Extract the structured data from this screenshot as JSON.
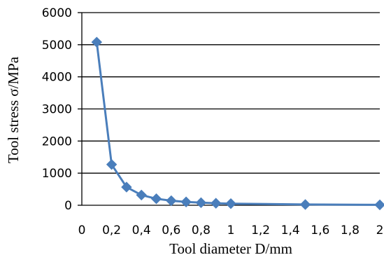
{
  "chart_data": {
    "type": "line",
    "title": "",
    "xlabel": "Tool diameter D/mm",
    "ylabel": "Tool stress σ/MPa",
    "xlim": [
      0,
      2
    ],
    "ylim": [
      0,
      6000
    ],
    "x_ticks": [
      "0",
      "0,2",
      "0,4",
      "0,6",
      "0,8",
      "1",
      "1,2",
      "1,4",
      "1,6",
      "1,8",
      "2"
    ],
    "x_tick_values": [
      0,
      0.2,
      0.4,
      0.6,
      0.8,
      1.0,
      1.2,
      1.4,
      1.6,
      1.8,
      2.0
    ],
    "y_ticks": [
      "0",
      "1000",
      "2000",
      "3000",
      "4000",
      "5000",
      "6000"
    ],
    "y_tick_values": [
      0,
      1000,
      2000,
      3000,
      4000,
      5000,
      6000
    ],
    "grid": "horizontal",
    "legend": "none",
    "series": [
      {
        "color": "#4a7ebb",
        "marker": "diamond",
        "x": [
          0.1,
          0.2,
          0.3,
          0.4,
          0.5,
          0.6,
          0.7,
          0.8,
          0.9,
          1.0,
          1.5,
          2.0
        ],
        "y": [
          5080,
          1270,
          565,
          318,
          203,
          141,
          104,
          80,
          63,
          51,
          23,
          13
        ]
      }
    ]
  }
}
